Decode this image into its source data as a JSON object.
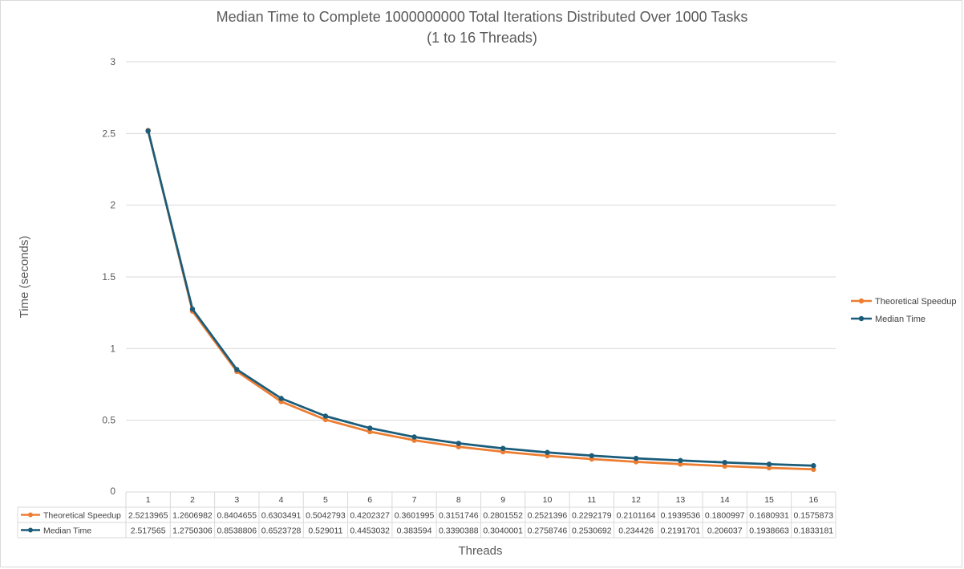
{
  "chart_data": {
    "type": "line",
    "title": "Median Time to Complete 1000000000 Total Iterations Distributed Over 1000 Tasks",
    "subtitle": "(1 to 16 Threads)",
    "xlabel": "Threads",
    "ylabel": "Time (seconds)",
    "ylim": [
      0,
      3
    ],
    "yticks": [
      "0",
      "0.5",
      "1",
      "1.5",
      "2",
      "2.5",
      "3"
    ],
    "grid": true,
    "legend": "right",
    "categories": [
      "1",
      "2",
      "3",
      "4",
      "5",
      "6",
      "7",
      "8",
      "9",
      "10",
      "11",
      "12",
      "13",
      "14",
      "15",
      "16"
    ],
    "series": [
      {
        "name": "Theoretical Speedup",
        "color": "#ed7d31",
        "values": [
          2.5213965,
          1.2606982,
          0.8404655,
          0.6303491,
          0.5042793,
          0.4202327,
          0.3601995,
          0.3151746,
          0.2801552,
          0.2521396,
          0.2292179,
          0.2101164,
          0.1939536,
          0.1800997,
          0.1680931,
          0.1575873
        ],
        "labels": [
          "2.5213965",
          "1.2606982",
          "0.8404655",
          "0.6303491",
          "0.5042793",
          "0.4202327",
          "0.3601995",
          "0.3151746",
          "0.2801552",
          "0.2521396",
          "0.2292179",
          "0.2101164",
          "0.1939536",
          "0.1800997",
          "0.1680931",
          "0.1575873"
        ]
      },
      {
        "name": "Median Time",
        "color": "#1a5c7a",
        "values": [
          2.517565,
          1.2750306,
          0.8538806,
          0.6523728,
          0.529011,
          0.4453032,
          0.383594,
          0.3390388,
          0.3040001,
          0.2758746,
          0.2530692,
          0.234426,
          0.2191701,
          0.206037,
          0.1938663,
          0.1833181
        ],
        "labels": [
          "2.517565",
          "1.2750306",
          "0.8538806",
          "0.6523728",
          "0.529011",
          "0.4453032",
          "0.383594",
          "0.3390388",
          "0.3040001",
          "0.2758746",
          "0.2530692",
          "0.234426",
          "0.2191701",
          "0.206037",
          "0.1938663",
          "0.1833181"
        ]
      }
    ]
  }
}
